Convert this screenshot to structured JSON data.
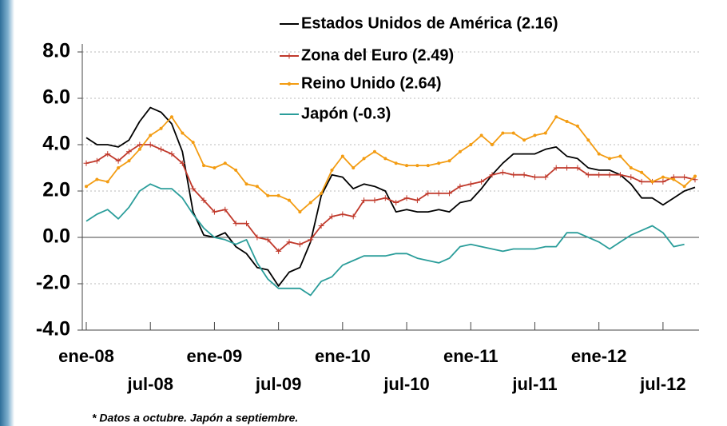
{
  "chart_data": {
    "type": "line",
    "categories": [
      "ene-08",
      null,
      null,
      null,
      null,
      null,
      "jul-08",
      null,
      null,
      null,
      null,
      null,
      "ene-09",
      null,
      null,
      null,
      null,
      null,
      "jul-09",
      null,
      null,
      null,
      null,
      null,
      "ene-10",
      null,
      null,
      null,
      null,
      null,
      "jul-10",
      null,
      null,
      null,
      null,
      null,
      "ene-11",
      null,
      null,
      null,
      null,
      null,
      "jul-11",
      null,
      null,
      null,
      null,
      null,
      "ene-12",
      null,
      null,
      null,
      null,
      null,
      "jul-12",
      null,
      null,
      null
    ],
    "series": [
      {
        "name": "Estados Unidos de América (2.16)",
        "color": "#000000",
        "marker": "none",
        "values": [
          4.3,
          4.0,
          4.0,
          3.9,
          4.2,
          5.0,
          5.6,
          5.4,
          4.9,
          3.7,
          1.1,
          0.1,
          0.0,
          0.2,
          -0.4,
          -0.7,
          -1.3,
          -1.4,
          -2.1,
          -1.5,
          -1.3,
          -0.2,
          1.8,
          2.7,
          2.6,
          2.1,
          2.3,
          2.2,
          2.0,
          1.1,
          1.2,
          1.1,
          1.1,
          1.2,
          1.1,
          1.5,
          1.6,
          2.1,
          2.7,
          3.2,
          3.6,
          3.6,
          3.6,
          3.8,
          3.9,
          3.5,
          3.4,
          3.0,
          2.9,
          2.9,
          2.7,
          2.3,
          1.7,
          1.7,
          1.4,
          1.7,
          2.0,
          2.16
        ]
      },
      {
        "name": "Zona del Euro (2.49)",
        "color": "#c0392b",
        "marker": "plus",
        "values": [
          3.2,
          3.3,
          3.6,
          3.3,
          3.7,
          4.0,
          4.0,
          3.8,
          3.6,
          3.2,
          2.1,
          1.6,
          1.1,
          1.2,
          0.6,
          0.6,
          0.0,
          -0.1,
          -0.6,
          -0.2,
          -0.3,
          -0.1,
          0.5,
          0.9,
          1.0,
          0.9,
          1.6,
          1.6,
          1.7,
          1.5,
          1.7,
          1.6,
          1.9,
          1.9,
          1.9,
          2.2,
          2.3,
          2.4,
          2.7,
          2.8,
          2.7,
          2.7,
          2.6,
          2.6,
          3.0,
          3.0,
          3.0,
          2.7,
          2.7,
          2.7,
          2.7,
          2.6,
          2.4,
          2.4,
          2.4,
          2.6,
          2.6,
          2.49
        ]
      },
      {
        "name": "Reino Unido (2.64)",
        "color": "#f39c12",
        "marker": "dot",
        "values": [
          2.2,
          2.5,
          2.4,
          3.0,
          3.3,
          3.8,
          4.4,
          4.7,
          5.2,
          4.5,
          4.1,
          3.1,
          3.0,
          3.2,
          2.9,
          2.3,
          2.2,
          1.8,
          1.8,
          1.6,
          1.1,
          1.5,
          1.9,
          2.9,
          3.5,
          3.0,
          3.4,
          3.7,
          3.4,
          3.2,
          3.1,
          3.1,
          3.1,
          3.2,
          3.3,
          3.7,
          4.0,
          4.4,
          4.0,
          4.5,
          4.5,
          4.2,
          4.4,
          4.5,
          5.2,
          5.0,
          4.8,
          4.2,
          3.6,
          3.4,
          3.5,
          3.0,
          2.8,
          2.4,
          2.6,
          2.5,
          2.2,
          2.64
        ]
      },
      {
        "name": "Japón (-0.3)",
        "color": "#2a9d9a",
        "marker": "none",
        "values": [
          0.7,
          1.0,
          1.2,
          0.8,
          1.3,
          2.0,
          2.3,
          2.1,
          2.1,
          1.7,
          1.0,
          0.4,
          0.0,
          -0.1,
          -0.3,
          -0.1,
          -1.1,
          -1.8,
          -2.2,
          -2.2,
          -2.2,
          -2.5,
          -1.9,
          -1.7,
          -1.2,
          -1.0,
          -0.8,
          -0.8,
          -0.8,
          -0.7,
          -0.7,
          -0.9,
          -1.0,
          -1.1,
          -0.9,
          -0.4,
          -0.3,
          -0.4,
          -0.5,
          -0.6,
          -0.5,
          -0.5,
          -0.5,
          -0.4,
          -0.4,
          0.2,
          0.2,
          0.0,
          -0.2,
          -0.5,
          -0.2,
          0.1,
          0.3,
          0.5,
          0.2,
          -0.4,
          -0.3,
          null
        ]
      }
    ],
    "ylim": [
      -4,
      8
    ],
    "yticks": [
      {
        "value": -4,
        "label": "-4.0"
      },
      {
        "value": -2,
        "label": "-2.0"
      },
      {
        "value": 0,
        "label": "0.0"
      },
      {
        "value": 2,
        "label": "2.0"
      },
      {
        "value": 4,
        "label": "4.0"
      },
      {
        "value": 6,
        "label": "6.0"
      },
      {
        "value": 8,
        "label": "8.0"
      }
    ],
    "grid": true,
    "legend": "top-right",
    "note": "* Datos a octubre. Japón a septiembre."
  }
}
